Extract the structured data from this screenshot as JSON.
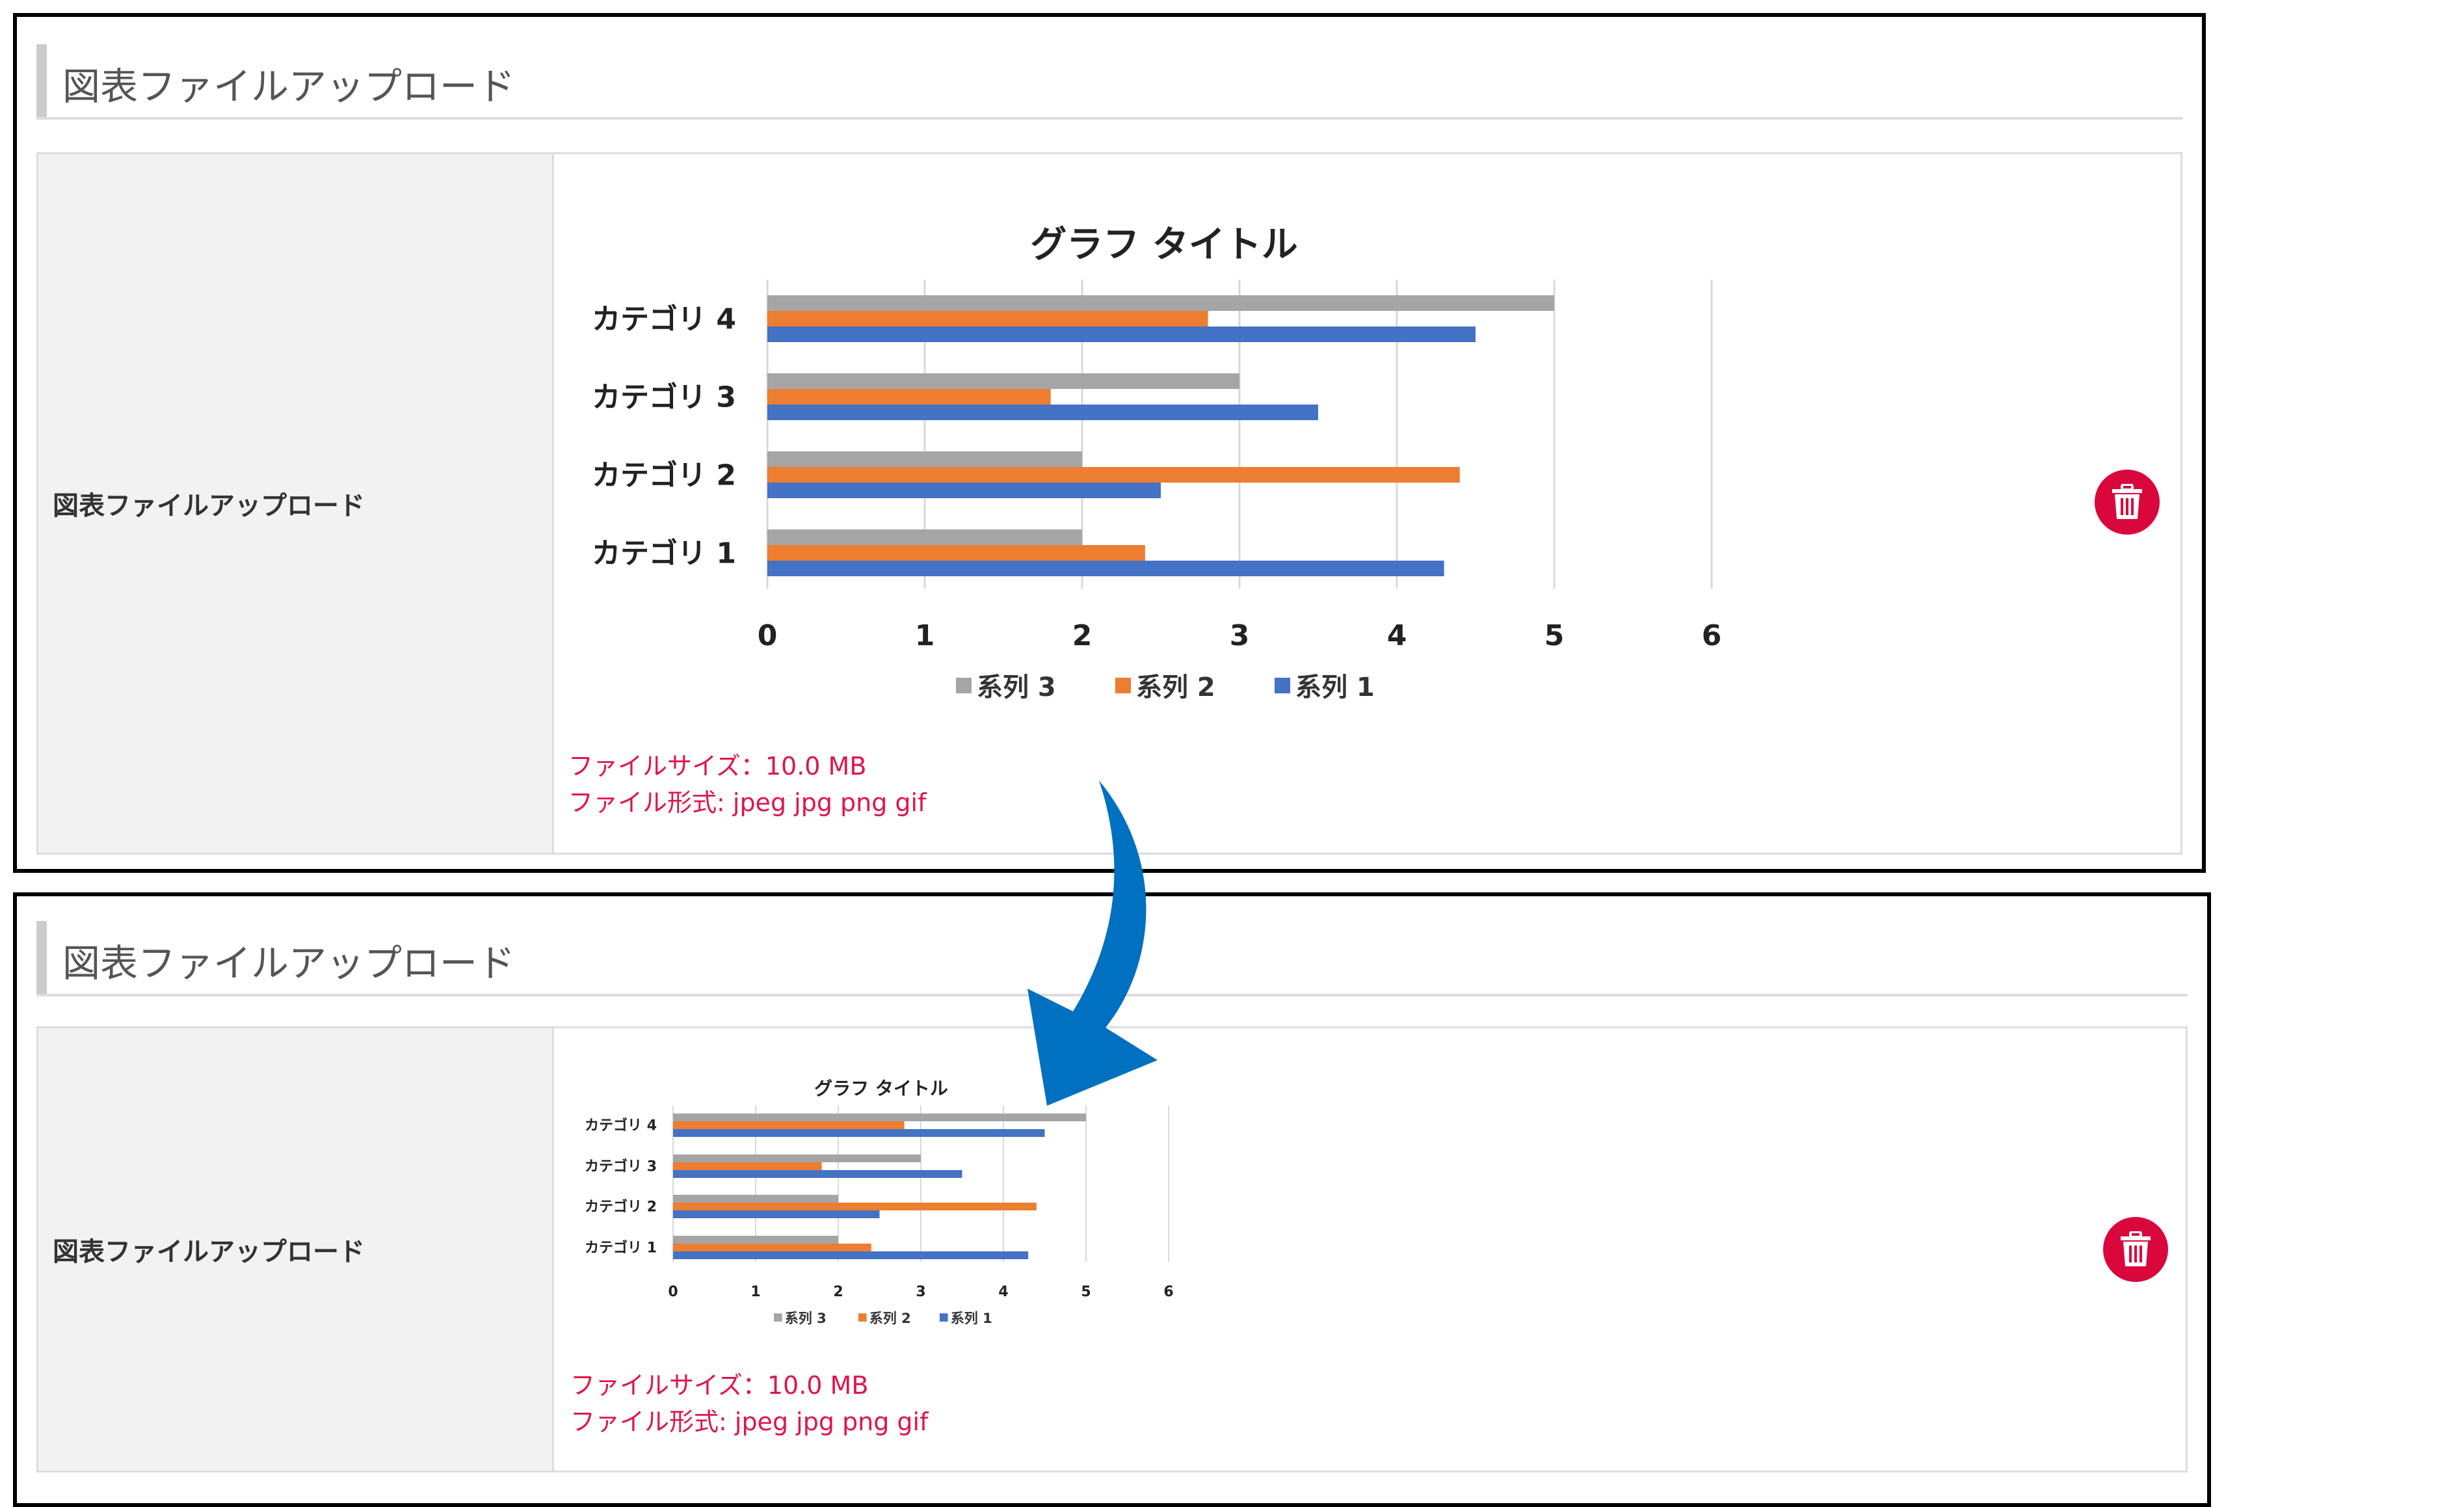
{
  "panels": [
    {
      "section_title": "図表ファイルアップロード",
      "field_label": "図表ファイルアップロード",
      "file_size_note": "ファイルサイズ：10.0 MB",
      "file_format_note": "ファイル形式: jpeg jpg png gif",
      "delete_button_icon": "trash-icon"
    },
    {
      "section_title": "図表ファイルアップロード",
      "field_label": "図表ファイルアップロード",
      "file_size_note": "ファイルサイズ：10.0 MB",
      "file_format_note": "ファイル形式: jpeg jpg png gif",
      "delete_button_icon": "trash-icon"
    }
  ],
  "colors": {
    "delete_button": "#d9073c",
    "note_text": "#e0154b",
    "arrow": "#0070c0"
  },
  "arrow_icon": "curved-arrow-down",
  "chart_data": {
    "type": "bar",
    "orientation": "horizontal",
    "title": "グラフ タイトル",
    "categories": [
      "カテゴリ 1",
      "カテゴリ 2",
      "カテゴリ 3",
      "カテゴリ 4"
    ],
    "series": [
      {
        "name": "系列 1",
        "color": "#4472c4",
        "values": [
          4.3,
          2.5,
          3.5,
          4.5
        ]
      },
      {
        "name": "系列 2",
        "color": "#ed7d31",
        "values": [
          2.4,
          4.4,
          1.8,
          2.8
        ]
      },
      {
        "name": "系列 3",
        "color": "#a5a5a5",
        "values": [
          2,
          2,
          3,
          5
        ]
      }
    ],
    "xlim": [
      0,
      6
    ],
    "xticks": [
      "0",
      "1",
      "2",
      "3",
      "4",
      "5",
      "6"
    ],
    "grid": true,
    "legend": "bottom"
  }
}
